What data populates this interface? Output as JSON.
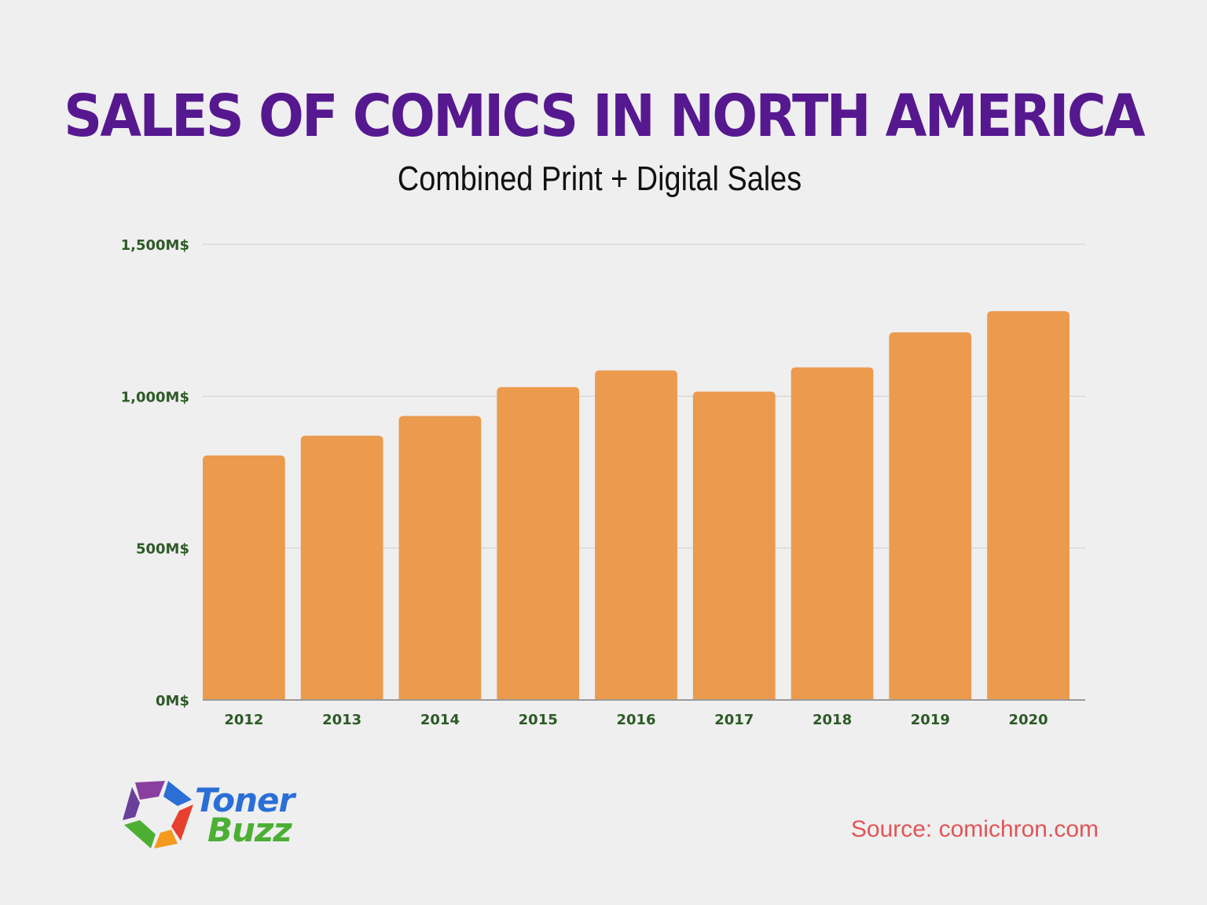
{
  "header": {
    "title": "SALES OF COMICS IN NORTH AMERICA",
    "subtitle": "Combined Print + Digital Sales"
  },
  "footer": {
    "logo_line1": "Toner",
    "logo_line2": "Buzz",
    "source": "Source: comichron.com"
  },
  "colors": {
    "title": "#56188f",
    "bar": "#eb9a4e",
    "tick_label": "#2d5a27",
    "source": "#e05558",
    "background": "#efefef"
  },
  "chart_data": {
    "type": "bar",
    "title": "SALES OF COMICS IN NORTH AMERICA",
    "subtitle": "Combined Print + Digital Sales",
    "categories": [
      "2012",
      "2013",
      "2014",
      "2015",
      "2016",
      "2017",
      "2018",
      "2019",
      "2020"
    ],
    "values": [
      805,
      870,
      935,
      1030,
      1085,
      1015,
      1095,
      1210,
      1280
    ],
    "ylim": [
      0,
      1500
    ],
    "yticks": [
      0,
      500,
      1000,
      1500
    ],
    "ytick_labels": [
      "0M$",
      "500M$",
      "1,000M$",
      "1,500M$"
    ],
    "grid": true,
    "legend": "none"
  }
}
